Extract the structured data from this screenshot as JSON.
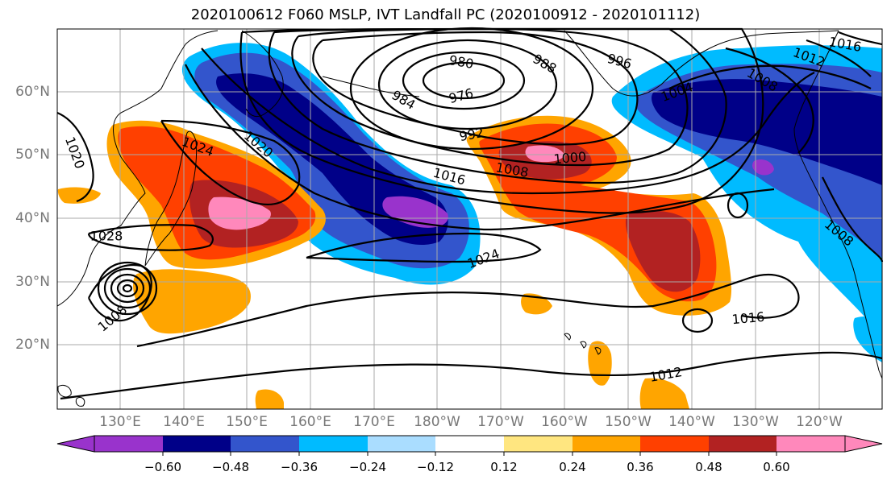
{
  "title": "2020100612 F060 MSLP, IVT Landfall PC (2020100912 - 2020101112)",
  "lat_labels": [
    "60°N",
    "50°N",
    "40°N",
    "30°N",
    "20°N"
  ],
  "lon_labels": [
    "130°E",
    "140°E",
    "150°E",
    "160°E",
    "170°E",
    "180°W",
    "170°W",
    "160°W",
    "150°W",
    "140°W",
    "130°W",
    "120°W"
  ],
  "colorbar": {
    "tick_labels": [
      "−0.60",
      "−0.48",
      "−0.36",
      "−0.24",
      "−0.12",
      "0.12",
      "0.24",
      "0.36",
      "0.48",
      "0.60"
    ],
    "colors": [
      "#9933cc",
      "#000088",
      "#3355cc",
      "#00bbff",
      "#aaddff",
      "#ffffff",
      "#ffe680",
      "#ffa500",
      "#ff4000",
      "#b22222",
      "#ff88bb"
    ]
  },
  "contour_labels": [
    {
      "text": "980",
      "angle": 10
    },
    {
      "text": "988",
      "angle": 30
    },
    {
      "text": "996",
      "angle": 15
    },
    {
      "text": "976",
      "angle": -15
    },
    {
      "text": "984",
      "angle": 30
    },
    {
      "text": "992",
      "angle": -10
    },
    {
      "text": "1000",
      "angle": -5
    },
    {
      "text": "1004",
      "angle": -20
    },
    {
      "text": "1008",
      "angle": 10
    },
    {
      "text": "1016",
      "angle": 15
    },
    {
      "text": "1020",
      "angle": 40
    },
    {
      "text": "1024",
      "angle": 20
    },
    {
      "text": "1024",
      "angle": -20
    },
    {
      "text": "1020",
      "angle": 70
    },
    {
      "text": "1028",
      "angle": 0
    },
    {
      "text": "1008",
      "angle": -40
    },
    {
      "text": "1016",
      "angle": -5
    },
    {
      "text": "1012",
      "angle": -10
    },
    {
      "text": "1012",
      "angle": 20
    },
    {
      "text": "1008",
      "angle": 30
    },
    {
      "text": "1016",
      "angle": 10
    },
    {
      "text": "1008",
      "angle": 40
    }
  ]
}
